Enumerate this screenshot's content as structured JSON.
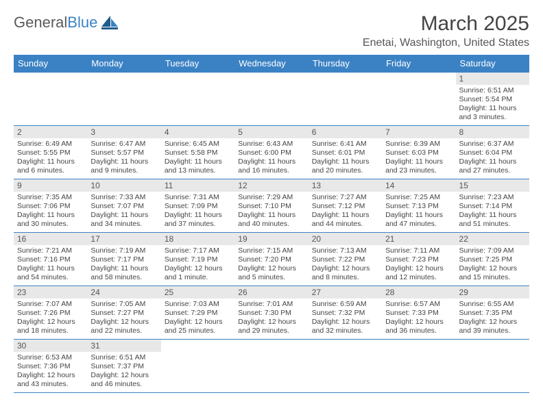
{
  "brand": {
    "part1": "General",
    "part2": "Blue",
    "text_color": "#5a5a5a",
    "accent": "#3b82c4"
  },
  "title": "March 2025",
  "location": "Enetai, Washington, United States",
  "header_bg": "#3b82c4",
  "header_fg": "#ffffff",
  "daynum_bg": "#e8e8e8",
  "border_color": "#3b82c4",
  "dayHeaders": [
    "Sunday",
    "Monday",
    "Tuesday",
    "Wednesday",
    "Thursday",
    "Friday",
    "Saturday"
  ],
  "weeks": [
    [
      null,
      null,
      null,
      null,
      null,
      null,
      {
        "n": "1",
        "sr": "Sunrise: 6:51 AM",
        "ss": "Sunset: 5:54 PM",
        "dl": "Daylight: 11 hours and 3 minutes."
      }
    ],
    [
      {
        "n": "2",
        "sr": "Sunrise: 6:49 AM",
        "ss": "Sunset: 5:55 PM",
        "dl": "Daylight: 11 hours and 6 minutes."
      },
      {
        "n": "3",
        "sr": "Sunrise: 6:47 AM",
        "ss": "Sunset: 5:57 PM",
        "dl": "Daylight: 11 hours and 9 minutes."
      },
      {
        "n": "4",
        "sr": "Sunrise: 6:45 AM",
        "ss": "Sunset: 5:58 PM",
        "dl": "Daylight: 11 hours and 13 minutes."
      },
      {
        "n": "5",
        "sr": "Sunrise: 6:43 AM",
        "ss": "Sunset: 6:00 PM",
        "dl": "Daylight: 11 hours and 16 minutes."
      },
      {
        "n": "6",
        "sr": "Sunrise: 6:41 AM",
        "ss": "Sunset: 6:01 PM",
        "dl": "Daylight: 11 hours and 20 minutes."
      },
      {
        "n": "7",
        "sr": "Sunrise: 6:39 AM",
        "ss": "Sunset: 6:03 PM",
        "dl": "Daylight: 11 hours and 23 minutes."
      },
      {
        "n": "8",
        "sr": "Sunrise: 6:37 AM",
        "ss": "Sunset: 6:04 PM",
        "dl": "Daylight: 11 hours and 27 minutes."
      }
    ],
    [
      {
        "n": "9",
        "sr": "Sunrise: 7:35 AM",
        "ss": "Sunset: 7:06 PM",
        "dl": "Daylight: 11 hours and 30 minutes."
      },
      {
        "n": "10",
        "sr": "Sunrise: 7:33 AM",
        "ss": "Sunset: 7:07 PM",
        "dl": "Daylight: 11 hours and 34 minutes."
      },
      {
        "n": "11",
        "sr": "Sunrise: 7:31 AM",
        "ss": "Sunset: 7:09 PM",
        "dl": "Daylight: 11 hours and 37 minutes."
      },
      {
        "n": "12",
        "sr": "Sunrise: 7:29 AM",
        "ss": "Sunset: 7:10 PM",
        "dl": "Daylight: 11 hours and 40 minutes."
      },
      {
        "n": "13",
        "sr": "Sunrise: 7:27 AM",
        "ss": "Sunset: 7:12 PM",
        "dl": "Daylight: 11 hours and 44 minutes."
      },
      {
        "n": "14",
        "sr": "Sunrise: 7:25 AM",
        "ss": "Sunset: 7:13 PM",
        "dl": "Daylight: 11 hours and 47 minutes."
      },
      {
        "n": "15",
        "sr": "Sunrise: 7:23 AM",
        "ss": "Sunset: 7:14 PM",
        "dl": "Daylight: 11 hours and 51 minutes."
      }
    ],
    [
      {
        "n": "16",
        "sr": "Sunrise: 7:21 AM",
        "ss": "Sunset: 7:16 PM",
        "dl": "Daylight: 11 hours and 54 minutes."
      },
      {
        "n": "17",
        "sr": "Sunrise: 7:19 AM",
        "ss": "Sunset: 7:17 PM",
        "dl": "Daylight: 11 hours and 58 minutes."
      },
      {
        "n": "18",
        "sr": "Sunrise: 7:17 AM",
        "ss": "Sunset: 7:19 PM",
        "dl": "Daylight: 12 hours and 1 minute."
      },
      {
        "n": "19",
        "sr": "Sunrise: 7:15 AM",
        "ss": "Sunset: 7:20 PM",
        "dl": "Daylight: 12 hours and 5 minutes."
      },
      {
        "n": "20",
        "sr": "Sunrise: 7:13 AM",
        "ss": "Sunset: 7:22 PM",
        "dl": "Daylight: 12 hours and 8 minutes."
      },
      {
        "n": "21",
        "sr": "Sunrise: 7:11 AM",
        "ss": "Sunset: 7:23 PM",
        "dl": "Daylight: 12 hours and 12 minutes."
      },
      {
        "n": "22",
        "sr": "Sunrise: 7:09 AM",
        "ss": "Sunset: 7:25 PM",
        "dl": "Daylight: 12 hours and 15 minutes."
      }
    ],
    [
      {
        "n": "23",
        "sr": "Sunrise: 7:07 AM",
        "ss": "Sunset: 7:26 PM",
        "dl": "Daylight: 12 hours and 18 minutes."
      },
      {
        "n": "24",
        "sr": "Sunrise: 7:05 AM",
        "ss": "Sunset: 7:27 PM",
        "dl": "Daylight: 12 hours and 22 minutes."
      },
      {
        "n": "25",
        "sr": "Sunrise: 7:03 AM",
        "ss": "Sunset: 7:29 PM",
        "dl": "Daylight: 12 hours and 25 minutes."
      },
      {
        "n": "26",
        "sr": "Sunrise: 7:01 AM",
        "ss": "Sunset: 7:30 PM",
        "dl": "Daylight: 12 hours and 29 minutes."
      },
      {
        "n": "27",
        "sr": "Sunrise: 6:59 AM",
        "ss": "Sunset: 7:32 PM",
        "dl": "Daylight: 12 hours and 32 minutes."
      },
      {
        "n": "28",
        "sr": "Sunrise: 6:57 AM",
        "ss": "Sunset: 7:33 PM",
        "dl": "Daylight: 12 hours and 36 minutes."
      },
      {
        "n": "29",
        "sr": "Sunrise: 6:55 AM",
        "ss": "Sunset: 7:35 PM",
        "dl": "Daylight: 12 hours and 39 minutes."
      }
    ],
    [
      {
        "n": "30",
        "sr": "Sunrise: 6:53 AM",
        "ss": "Sunset: 7:36 PM",
        "dl": "Daylight: 12 hours and 43 minutes."
      },
      {
        "n": "31",
        "sr": "Sunrise: 6:51 AM",
        "ss": "Sunset: 7:37 PM",
        "dl": "Daylight: 12 hours and 46 minutes."
      },
      null,
      null,
      null,
      null,
      null
    ]
  ]
}
